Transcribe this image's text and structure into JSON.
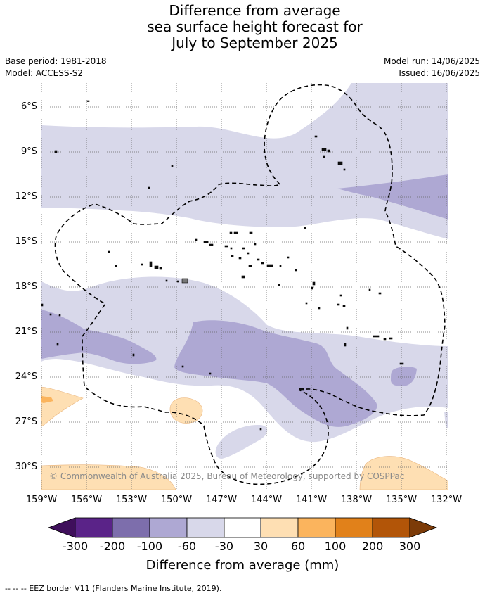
{
  "title": {
    "line1": "Difference from average",
    "line2": "sea surface height forecast for",
    "line3": "July to September 2025"
  },
  "meta": {
    "base_period": "Base period: 1981-2018",
    "model": "Model: ACCESS-S2",
    "model_run": "Model run: 14/06/2025",
    "issued": "Issued: 16/06/2025"
  },
  "map": {
    "lat_labels": [
      "6°S",
      "9°S",
      "12°S",
      "15°S",
      "18°S",
      "21°S",
      "24°S",
      "27°S",
      "30°S"
    ],
    "lon_labels": [
      "159°W",
      "156°W",
      "153°W",
      "150°W",
      "147°W",
      "144°W",
      "141°W",
      "138°W",
      "135°W",
      "132°W"
    ],
    "copyright": "© Commonwealth of Australia 2025, Bureau of Meteorology, supported by COSPPac"
  },
  "colorbar": {
    "tick_labels": [
      "-300",
      "-200",
      "-100",
      "-60",
      "-30",
      "30",
      "60",
      "100",
      "200",
      "300"
    ],
    "colors": [
      "#3f0f5b",
      "#5a2388",
      "#7d6eac",
      "#aea8d3",
      "#d8d8ea",
      "#ffffff",
      "#fedfb3",
      "#fbb45d",
      "#e1811a",
      "#b25508",
      "#7c3b08"
    ],
    "title": "Difference from average (mm)"
  },
  "footer": {
    "legend_text": "--  --  -- EEZ border V11 (Flanders Marine Institute, 2019)."
  }
}
